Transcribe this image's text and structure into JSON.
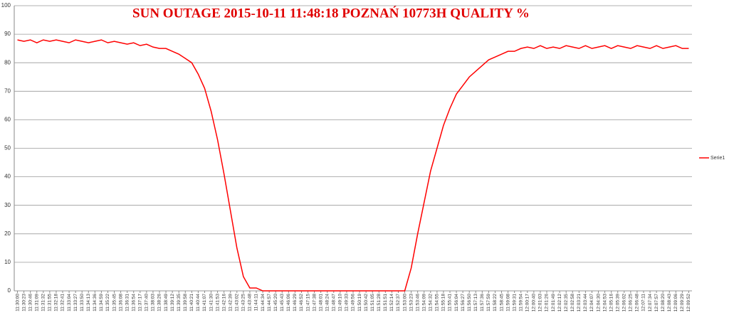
{
  "chart_data": {
    "type": "line",
    "title": "SUN OUTAGE 2015-10-11 11:48:18 POZNAŃ 10773H QUALITY %",
    "categories": [
      "11:30:00",
      "11:30:23",
      "11:30:46",
      "11:31:09",
      "11:31:32",
      "11:31:55",
      "11:32:18",
      "11:32:41",
      "11:33:04",
      "11:33:27",
      "11:33:50",
      "11:34:13",
      "11:34:36",
      "11:34:59",
      "11:35:22",
      "11:35:45",
      "11:36:08",
      "11:36:31",
      "11:36:54",
      "11:37:17",
      "11:37:40",
      "11:38:03",
      "11:38:26",
      "11:38:49",
      "11:39:12",
      "11:39:35",
      "11:39:58",
      "11:40:21",
      "11:40:44",
      "11:41:07",
      "11:41:30",
      "11:41:53",
      "11:42:16",
      "11:42:39",
      "11:43:02",
      "11:43:25",
      "11:43:48",
      "11:44:11",
      "11:44:34",
      "11:44:57",
      "11:45:20",
      "11:45:43",
      "11:46:06",
      "11:46:29",
      "11:46:52",
      "11:47:15",
      "11:47:38",
      "11:48:01",
      "11:48:24",
      "11:48:47",
      "11:49:10",
      "11:49:33",
      "11:49:56",
      "11:50:19",
      "11:50:42",
      "11:51:05",
      "11:51:28",
      "11:51:51",
      "11:52:14",
      "11:52:37",
      "11:53:00",
      "11:53:23",
      "11:53:46",
      "11:54:09",
      "11:54:32",
      "11:54:55",
      "11:55:18",
      "11:55:41",
      "11:56:04",
      "11:56:27",
      "11:56:50",
      "11:57:13",
      "11:57:36",
      "11:57:59",
      "11:58:22",
      "11:58:45",
      "11:59:08",
      "11:59:31",
      "11:59:54",
      "12:00:17",
      "12:00:40",
      "12:01:03",
      "12:01:26",
      "12:01:49",
      "12:02:12",
      "12:02:35",
      "12:02:58",
      "12:03:21",
      "12:03:44",
      "12:04:07",
      "12:04:30",
      "12:04:53",
      "12:05:16",
      "12:05:39",
      "12:06:02",
      "12:06:25",
      "12:06:48",
      "12:07:11",
      "12:07:34",
      "12:07:57",
      "12:08:20",
      "12:08:43",
      "12:09:06",
      "12:09:29",
      "12:09:52"
    ],
    "series": [
      {
        "name": "Serie1",
        "color": "#ff0000",
        "values": [
          88,
          87.5,
          88,
          87,
          88,
          87.5,
          88,
          87.5,
          87,
          88,
          87.5,
          87,
          87.5,
          88,
          87,
          87.5,
          87,
          86.5,
          87,
          86,
          86.5,
          85.5,
          85,
          85,
          84,
          83,
          81.5,
          80,
          76,
          71,
          63,
          53,
          41,
          28,
          15,
          5,
          1,
          1,
          0,
          0,
          0,
          0,
          0,
          0,
          0,
          0,
          0,
          0,
          0,
          0,
          0,
          0,
          0,
          0,
          0,
          0,
          0,
          0,
          0,
          0,
          0,
          8,
          20,
          31,
          42,
          50,
          58,
          64,
          69,
          72,
          75,
          77,
          79,
          81,
          82,
          83,
          84,
          84,
          85,
          85.5,
          85,
          86,
          85,
          85.5,
          85,
          86,
          85.5,
          85,
          86,
          85,
          85.5,
          86,
          85,
          86,
          85.5,
          85,
          86,
          85.5,
          85,
          86,
          85,
          85.5,
          86,
          85,
          85
        ]
      }
    ],
    "ylim": [
      0,
      100
    ],
    "yticks": [
      0,
      10,
      20,
      30,
      40,
      50,
      60,
      70,
      80,
      90,
      100
    ],
    "grid": true
  }
}
